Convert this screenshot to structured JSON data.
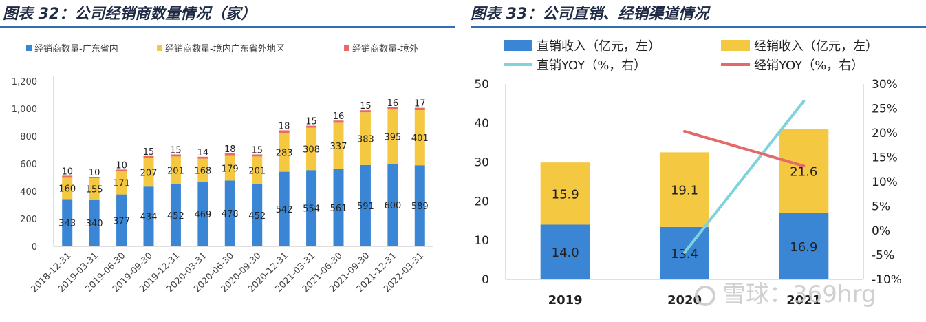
{
  "left_panel": {
    "title": "图表 32：公司经销商数量情况（家）",
    "colors": {
      "s1": "#3a86d4",
      "s2": "#f5c842",
      "s3": "#e86a6a"
    }
  },
  "right_panel": {
    "title": "图表 33：公司直销、经销渠道情况",
    "colors": {
      "bar1": "#3a86d4",
      "bar2": "#f5c842",
      "line1": "#7fd3dd",
      "line2": "#e36a6a"
    }
  },
  "watermark": "雪球：369hrg",
  "chart_data": [
    {
      "type": "bar",
      "stacked": true,
      "title": "图表 32：公司经销商数量情况（家）",
      "categories": [
        "2018-12-31",
        "2019-03-31",
        "2019-06-30",
        "2019-09-30",
        "2019-12-31",
        "2020-03-31",
        "2020-06-30",
        "2020-09-30",
        "2020-12-31",
        "2021-03-31",
        "2021-06-30",
        "2021-09-30",
        "2021-12-31",
        "2022-03-31"
      ],
      "series": [
        {
          "name": "经销商数量-广东省内",
          "values": [
            343,
            340,
            377,
            434,
            452,
            469,
            478,
            452,
            542,
            554,
            561,
            591,
            600,
            589
          ]
        },
        {
          "name": "经销商数量-境内广东省外地区",
          "values": [
            160,
            155,
            171,
            207,
            201,
            168,
            179,
            201,
            283,
            308,
            337,
            383,
            395,
            401
          ]
        },
        {
          "name": "经销商数量-境外",
          "values": [
            10,
            10,
            10,
            15,
            15,
            14,
            18,
            15,
            18,
            15,
            16,
            15,
            16,
            17
          ]
        }
      ],
      "ylim": [
        0,
        1200
      ],
      "yticks": [
        "0",
        "200",
        "400",
        "600",
        "800",
        "1,000",
        "1,200"
      ],
      "legend": "top"
    },
    {
      "type": "bar",
      "stacked": true,
      "title": "图表 33：公司直销、经销渠道情况",
      "categories": [
        "2019",
        "2020",
        "2021"
      ],
      "series": [
        {
          "name": "直销收入（亿元，左）",
          "type": "bar",
          "values": [
            14.0,
            13.4,
            16.9
          ],
          "labels": [
            "14.0",
            "13.4",
            "16.9"
          ]
        },
        {
          "name": "经销收入（亿元，左）",
          "type": "bar",
          "values": [
            15.9,
            19.1,
            21.6
          ],
          "labels": [
            "15.9",
            "19.1",
            "21.6"
          ]
        },
        {
          "name": "直销YOY（%，右）",
          "type": "line",
          "axis": "right",
          "values": [
            null,
            -4.5,
            26.5
          ]
        },
        {
          "name": "经销YOY（%，右）",
          "type": "line",
          "axis": "right",
          "values": [
            null,
            20.3,
            13.2
          ]
        }
      ],
      "ylim_left": [
        0,
        50
      ],
      "yticks_left": [
        "0",
        "10",
        "20",
        "30",
        "40",
        "50"
      ],
      "ylim_right": [
        -10,
        30
      ],
      "yticks_right": [
        "-10%",
        "-5%",
        "0%",
        "5%",
        "10%",
        "15%",
        "20%",
        "25%",
        "30%"
      ],
      "legend": "top"
    }
  ]
}
